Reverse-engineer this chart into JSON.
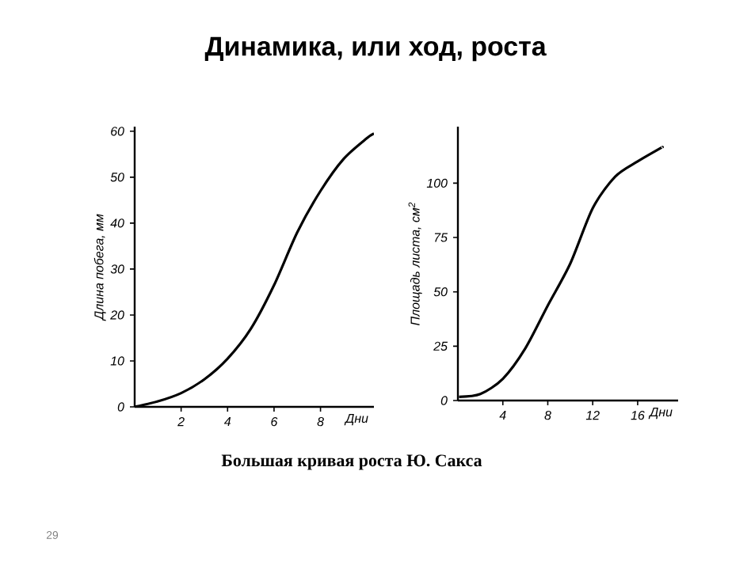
{
  "chart_data": [
    {
      "type": "line",
      "title": "Динамика, или ход, роста",
      "xlabel": "Дни",
      "ylabel": "Длина побега, мм",
      "x": [
        0,
        1,
        2,
        3,
        4,
        5,
        6,
        7,
        8,
        9,
        10,
        10.3
      ],
      "series": [
        {
          "color": "#000000",
          "values": [
            0,
            1.2,
            3,
            6,
            10.5,
            17,
            26.5,
            38,
            47,
            54,
            58.5,
            59.5
          ]
        }
      ],
      "xlim": [
        0,
        10.3
      ],
      "ylim": [
        0,
        61
      ],
      "xticks": [
        2,
        4,
        6,
        8
      ],
      "yticks": [
        0,
        10,
        20,
        30,
        40,
        50,
        60
      ],
      "marker": "none",
      "line_style": "solid"
    },
    {
      "type": "line",
      "xlabel": "Дни",
      "ylabel": "Площадь листа, см$^{2}$",
      "annotations": [
        "Большая кривая роста Ю. Сакса",
        "29"
      ],
      "x": [
        0.1,
        2,
        4,
        6,
        8,
        10,
        12,
        14,
        16,
        18,
        18.2
      ],
      "series": [
        {
          "color": "#000000",
          "values": [
            1.7,
            3,
            10,
            24,
            43.7,
            63,
            88.5,
            103,
            110,
            116,
            116.5
          ]
        }
      ],
      "xlim": [
        0,
        19.6
      ],
      "ylim": [
        0,
        126
      ],
      "xticks": [
        4,
        8,
        12,
        16
      ],
      "yticks": [
        0,
        25,
        50,
        75,
        100
      ],
      "marker": "none",
      "line_style": "solid"
    }
  ]
}
